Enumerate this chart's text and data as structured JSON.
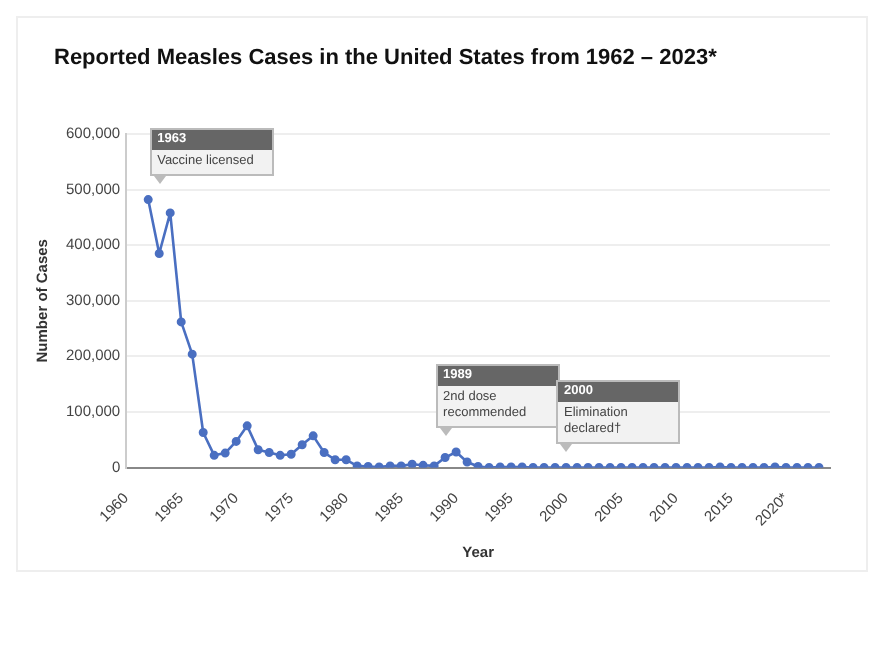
{
  "chart_data": {
    "type": "line",
    "title": "Reported Measles Cases in the United States from 1962 – 2023*",
    "xlabel": "Year",
    "ylabel": "Number of Cases",
    "x": [
      1962,
      1963,
      1964,
      1965,
      1966,
      1967,
      1968,
      1969,
      1970,
      1971,
      1972,
      1973,
      1974,
      1975,
      1976,
      1977,
      1978,
      1979,
      1980,
      1981,
      1982,
      1983,
      1984,
      1985,
      1986,
      1987,
      1988,
      1989,
      1990,
      1991,
      1992,
      1993,
      1994,
      1995,
      1996,
      1997,
      1998,
      1999,
      2000,
      2001,
      2002,
      2003,
      2004,
      2005,
      2006,
      2007,
      2008,
      2009,
      2010,
      2011,
      2012,
      2013,
      2014,
      2015,
      2016,
      2017,
      2018,
      2019,
      2020,
      2021,
      2022,
      2023
    ],
    "series": [
      {
        "color": "#4a6fc1",
        "values": [
          482000,
          385000,
          458000,
          262000,
          204000,
          63000,
          22000,
          26000,
          47000,
          75000,
          32000,
          27000,
          22000,
          24000,
          41000,
          57000,
          27000,
          14000,
          14000,
          3000,
          2000,
          1000,
          3000,
          3000,
          6000,
          4000,
          3000,
          18000,
          28000,
          10000,
          2000,
          0,
          1000,
          1000,
          1000,
          0,
          0,
          0,
          0,
          0,
          0,
          0,
          0,
          0,
          0,
          0,
          0,
          0,
          0,
          0,
          0,
          0,
          1000,
          0,
          0,
          0,
          0,
          1000,
          0,
          0,
          0,
          0
        ]
      }
    ],
    "xlim": [
      1960,
      2024
    ],
    "xticks": [
      1960,
      1965,
      1970,
      1975,
      1980,
      1985,
      1990,
      1995,
      2000,
      2005,
      2010,
      2015,
      {
        "value": 2020,
        "label": "2020*"
      }
    ],
    "ylim": [
      0,
      600000
    ],
    "yticks": [
      0,
      {
        "value": 100000,
        "label": "100,000"
      },
      {
        "value": 200000,
        "label": "200,000"
      },
      {
        "value": 300000,
        "label": "300,000"
      },
      {
        "value": 400000,
        "label": "400,000"
      },
      {
        "value": 500000,
        "label": "500,000"
      },
      {
        "value": 600000,
        "label": "600,000"
      }
    ],
    "grid": "y",
    "legend": false,
    "marker": "circle",
    "line_style": "solid",
    "annotations": [
      "1963\nVaccine licensed",
      "1989\n2nd dose recommended",
      "2000\nElimination declared†"
    ]
  }
}
